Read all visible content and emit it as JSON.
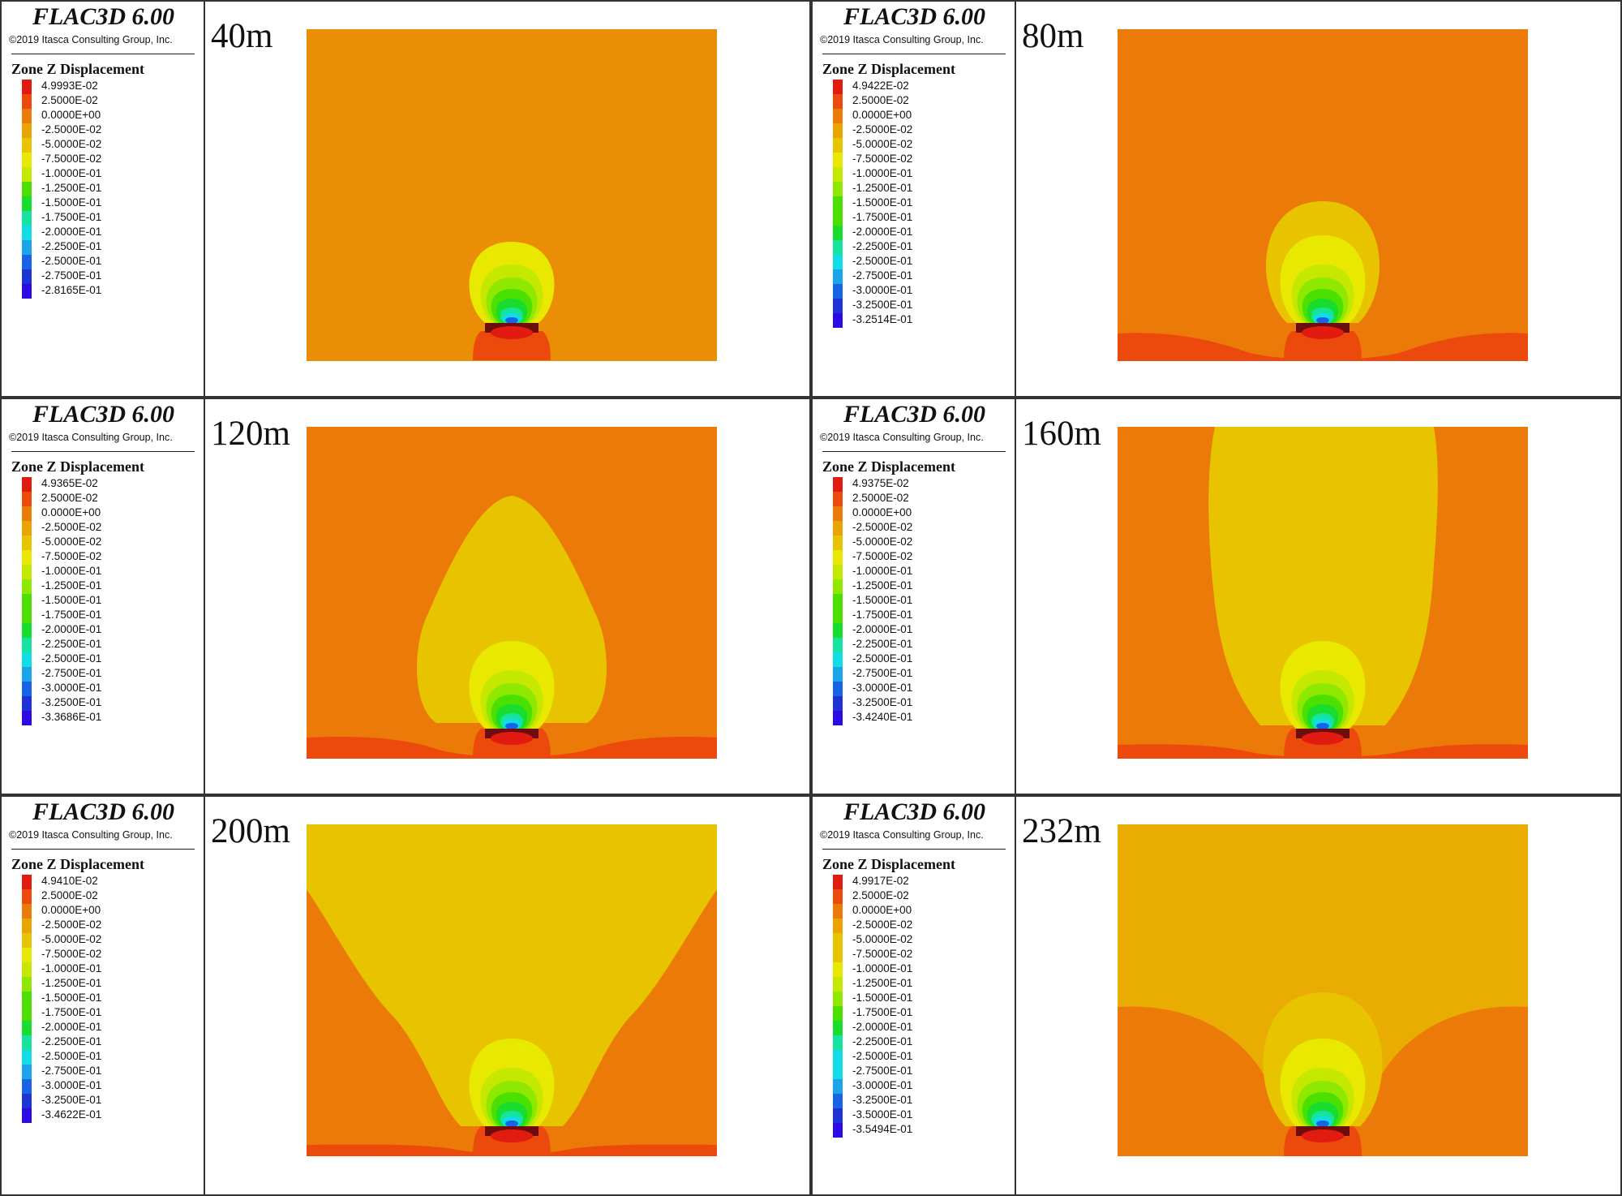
{
  "colors": {
    "bands": [
      "#e21b10",
      "#ec4a0c",
      "#ec7a08",
      "#e9a402",
      "#e8c400",
      "#e8e800",
      "#c4e800",
      "#8fe800",
      "#4ce000",
      "#18dd2e",
      "#17e3a0",
      "#11dde7",
      "#1aa4ea",
      "#1864e6",
      "#1e33d6",
      "#2a0be6"
    ],
    "border": "#333333",
    "excavation": "#6e0d0d"
  },
  "panels": [
    {
      "software": "FLAC3D 6.00",
      "copyright": "©2019 Itasca Consulting Group, Inc.",
      "legend_title": "Zone Z Displacement",
      "legend_values": [
        "4.9993E-02",
        "2.5000E-02",
        "0.0000E+00",
        "-2.5000E-02",
        "-5.0000E-02",
        "-7.5000E-02",
        "-1.0000E-01",
        "-1.2500E-01",
        "-1.5000E-01",
        "-1.7500E-01",
        "-2.0000E-01",
        "-2.2500E-01",
        "-2.5000E-01",
        "-2.7500E-01",
        "-2.8165E-01"
      ],
      "depth_label": "40m",
      "depth_m": 40,
      "background_color": "#ea8e05"
    },
    {
      "software": "FLAC3D 6.00",
      "copyright": "©2019 Itasca Consulting Group, Inc.",
      "legend_title": "Zone Z Displacement",
      "legend_values": [
        "4.9422E-02",
        "2.5000E-02",
        "0.0000E+00",
        "-2.5000E-02",
        "-5.0000E-02",
        "-7.5000E-02",
        "-1.0000E-01",
        "-1.2500E-01",
        "-1.5000E-01",
        "-1.7500E-01",
        "-2.0000E-01",
        "-2.2500E-01",
        "-2.5000E-01",
        "-2.7500E-01",
        "-3.0000E-01",
        "-3.2500E-01",
        "-3.2514E-01"
      ],
      "depth_label": "80m",
      "depth_m": 80,
      "background_color": "#ec7a08"
    },
    {
      "software": "FLAC3D 6.00",
      "copyright": "©2019 Itasca Consulting Group, Inc.",
      "legend_title": "Zone Z Displacement",
      "legend_values": [
        "4.9365E-02",
        "2.5000E-02",
        "0.0000E+00",
        "-2.5000E-02",
        "-5.0000E-02",
        "-7.5000E-02",
        "-1.0000E-01",
        "-1.2500E-01",
        "-1.5000E-01",
        "-1.7500E-01",
        "-2.0000E-01",
        "-2.2500E-01",
        "-2.5000E-01",
        "-2.7500E-01",
        "-3.0000E-01",
        "-3.2500E-01",
        "-3.3686E-01"
      ],
      "depth_label": "120m",
      "depth_m": 120,
      "background_color": "#ec7a08"
    },
    {
      "software": "FLAC3D 6.00",
      "copyright": "©2019 Itasca Consulting Group, Inc.",
      "legend_title": "Zone Z Displacement",
      "legend_values": [
        "4.9375E-02",
        "2.5000E-02",
        "0.0000E+00",
        "-2.5000E-02",
        "-5.0000E-02",
        "-7.5000E-02",
        "-1.0000E-01",
        "-1.2500E-01",
        "-1.5000E-01",
        "-1.7500E-01",
        "-2.0000E-01",
        "-2.2500E-01",
        "-2.5000E-01",
        "-2.7500E-01",
        "-3.0000E-01",
        "-3.2500E-01",
        "-3.4240E-01"
      ],
      "depth_label": "160m",
      "depth_m": 160,
      "background_color": "#ec7a08"
    },
    {
      "software": "FLAC3D 6.00",
      "copyright": "©2019 Itasca Consulting Group, Inc.",
      "legend_title": "Zone Z Displacement",
      "legend_values": [
        "4.9410E-02",
        "2.5000E-02",
        "0.0000E+00",
        "-2.5000E-02",
        "-5.0000E-02",
        "-7.5000E-02",
        "-1.0000E-01",
        "-1.2500E-01",
        "-1.5000E-01",
        "-1.7500E-01",
        "-2.0000E-01",
        "-2.2500E-01",
        "-2.5000E-01",
        "-2.7500E-01",
        "-3.0000E-01",
        "-3.2500E-01",
        "-3.4622E-01"
      ],
      "depth_label": "200m",
      "depth_m": 200,
      "background_color": "#e8c400"
    },
    {
      "software": "FLAC3D 6.00",
      "copyright": "©2019 Itasca Consulting Group, Inc.",
      "legend_title": "Zone Z Displacement",
      "legend_values": [
        "4.9917E-02",
        "2.5000E-02",
        "0.0000E+00",
        "-2.5000E-02",
        "-5.0000E-02",
        "-7.5000E-02",
        "-1.0000E-01",
        "-1.2500E-01",
        "-1.5000E-01",
        "-1.7500E-01",
        "-2.0000E-01",
        "-2.2500E-01",
        "-2.5000E-01",
        "-2.7500E-01",
        "-3.0000E-01",
        "-3.2500E-01",
        "-3.5000E-01",
        "-3.5494E-01"
      ],
      "depth_label": "232m",
      "depth_m": 232,
      "background_color": "#e9ac02"
    }
  ]
}
